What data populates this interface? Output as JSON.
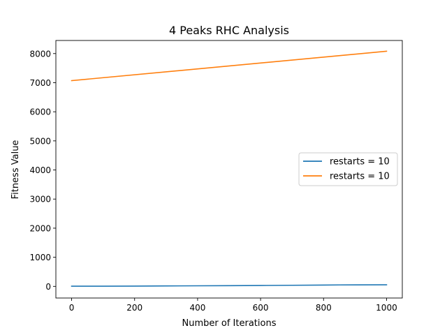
{
  "chart_data": {
    "type": "line",
    "title": "4 Peaks RHC Analysis",
    "xlabel": "Number of Iterations",
    "ylabel": "Fitness Value",
    "xlim": [
      -50,
      1050
    ],
    "ylim": [
      -400,
      8450
    ],
    "x_ticks": [
      0,
      200,
      400,
      600,
      800,
      1000
    ],
    "y_ticks": [
      0,
      1000,
      2000,
      3000,
      4000,
      5000,
      6000,
      7000,
      8000
    ],
    "x_tick_labels": [
      "0",
      "200",
      "400",
      "600",
      "800",
      "1000"
    ],
    "y_tick_labels": [
      "0",
      "1000",
      "2000",
      "3000",
      "4000",
      "5000",
      "6000",
      "7000",
      "8000"
    ],
    "grid": false,
    "legend_placement": "center-right",
    "series": [
      {
        "name": "restarts = 10",
        "color": "#1f77b4",
        "x": [
          0,
          100,
          200,
          300,
          400,
          500,
          600,
          700,
          800,
          850,
          900,
          1000
        ],
        "y": [
          5,
          7,
          10,
          15,
          20,
          25,
          30,
          38,
          45,
          50,
          52,
          55
        ]
      },
      {
        "name": "restarts = 10",
        "color": "#ff7f0e",
        "x": [
          0,
          1000
        ],
        "y": [
          7070,
          8080
        ]
      }
    ]
  }
}
